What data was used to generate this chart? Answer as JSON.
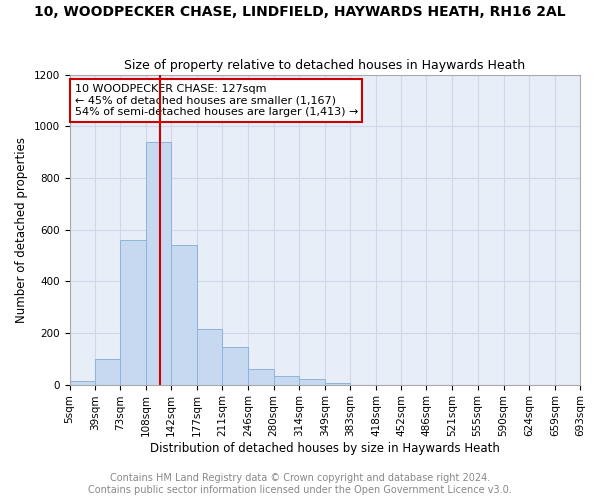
{
  "title": "10, WOODPECKER CHASE, LINDFIELD, HAYWARDS HEATH, RH16 2AL",
  "subtitle": "Size of property relative to detached houses in Haywards Heath",
  "xlabel": "Distribution of detached houses by size in Haywards Heath",
  "ylabel": "Number of detached properties",
  "footer_line1": "Contains HM Land Registry data © Crown copyright and database right 2024.",
  "footer_line2": "Contains public sector information licensed under the Open Government Licence v3.0.",
  "annotation_line1": "10 WOODPECKER CHASE: 127sqm",
  "annotation_line2": "← 45% of detached houses are smaller (1,167)",
  "annotation_line3": "54% of semi-detached houses are larger (1,413) →",
  "bin_edges": [
    5,
    39,
    73,
    108,
    142,
    177,
    211,
    246,
    280,
    314,
    349,
    383,
    418,
    452,
    486,
    521,
    555,
    590,
    624,
    659,
    693
  ],
  "bin_counts": [
    15,
    100,
    560,
    940,
    540,
    215,
    145,
    60,
    35,
    20,
    5,
    0,
    0,
    0,
    0,
    0,
    0,
    0,
    0,
    0
  ],
  "bar_color": "#c6d9f0",
  "bar_edge_color": "#8db4d9",
  "vline_color": "#cc0000",
  "vline_x": 127,
  "annotation_box_edge_color": "#cc0000",
  "annotation_box_face_color": "#ffffff",
  "grid_color": "#d0d8e8",
  "background_color": "#ffffff",
  "axes_bg_color": "#e8eef8",
  "ylim": [
    0,
    1200
  ],
  "yticks": [
    0,
    200,
    400,
    600,
    800,
    1000,
    1200
  ],
  "title_fontsize": 10,
  "subtitle_fontsize": 9,
  "axis_label_fontsize": 8.5,
  "tick_fontsize": 7.5,
  "footer_fontsize": 7,
  "annotation_fontsize": 8
}
